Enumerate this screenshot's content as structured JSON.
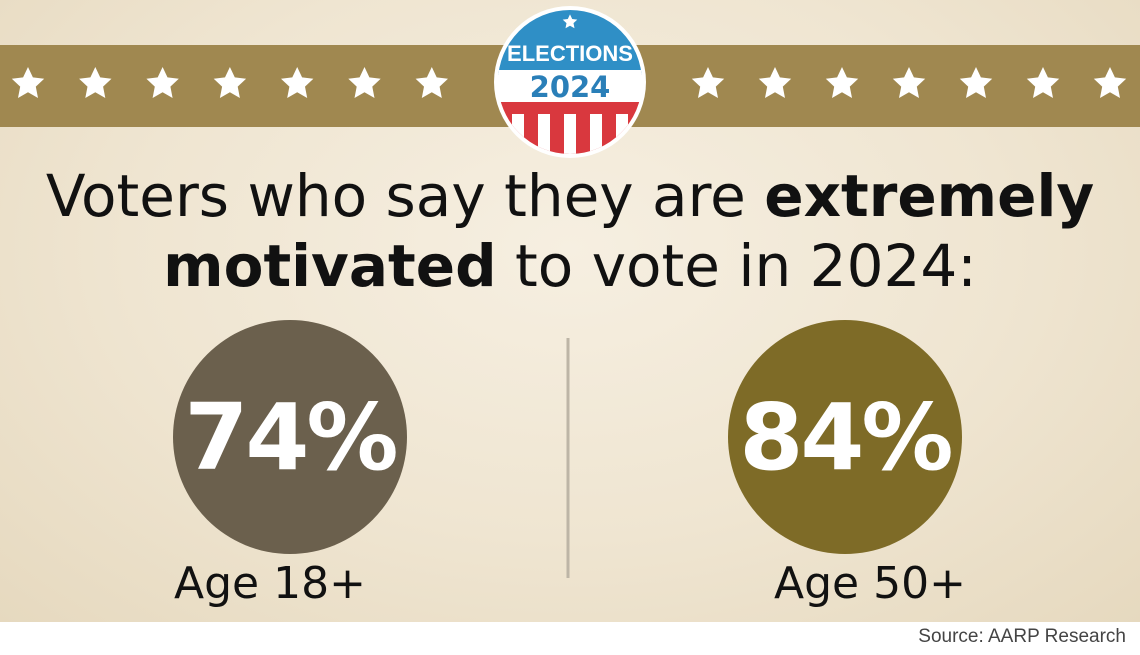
{
  "badge": {
    "top": "ELECTIONS",
    "year": "2024"
  },
  "title": {
    "line1": {
      "regular": "Voters who say they are ",
      "bold": "extremely"
    },
    "line2": {
      "bold": "motivated",
      "regular": " to vote in 2024:"
    }
  },
  "stats": [
    {
      "value": "74%",
      "label": "Age 18+"
    },
    {
      "value": "84%",
      "label": "Age 50+"
    }
  ],
  "source": "Source: AARP Research"
}
